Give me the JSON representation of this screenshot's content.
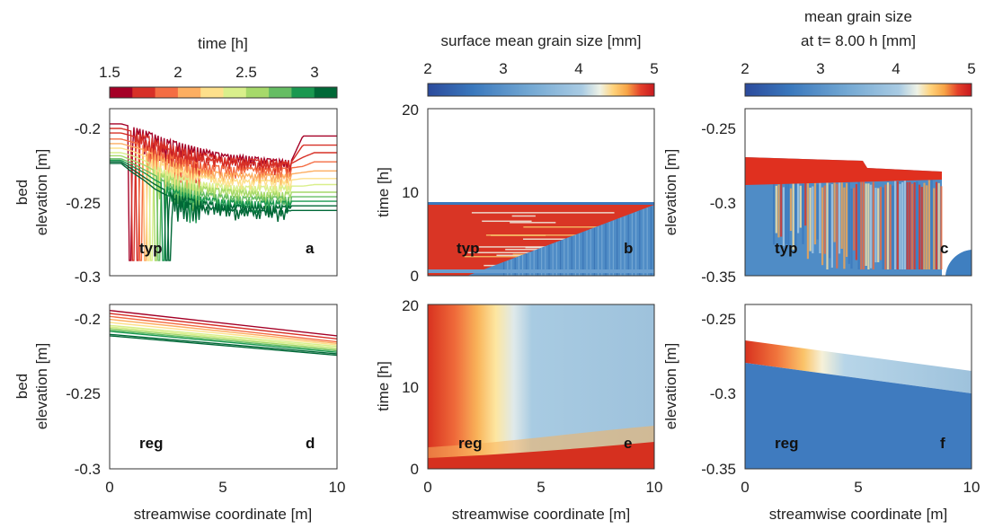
{
  "colors": {
    "rdylgn": [
      "#a50026",
      "#d73027",
      "#f46d43",
      "#fdae61",
      "#fee08b",
      "#d9ef8b",
      "#a6d96a",
      "#66bd63",
      "#1a9850",
      "#006837"
    ],
    "jet_map": [
      "#2b4a9c",
      "#3a78bd",
      "#73a8d3",
      "#a9cbe3",
      "#eef2e6",
      "#ffd27a",
      "#f7a446",
      "#e4402a",
      "#c7191f"
    ]
  },
  "figure": {
    "colorbars": [
      {
        "label_lines": [
          "time [h]"
        ],
        "ticks": [
          "1.5",
          "2",
          "2.5",
          "3"
        ],
        "range": [
          1.5,
          3.17
        ],
        "type": "discrete"
      },
      {
        "label_lines": [
          "surface mean grain size [mm]"
        ],
        "ticks": [
          "2",
          "3",
          "4",
          "5"
        ],
        "range": [
          2,
          5
        ],
        "type": "continuous"
      },
      {
        "label_lines": [
          "mean grain size",
          "at t= 8.00 h [mm]"
        ],
        "ticks": [
          "2",
          "3",
          "4",
          "5"
        ],
        "range": [
          2,
          5
        ],
        "type": "continuous"
      }
    ]
  },
  "chart_data": [
    {
      "type": "line",
      "panel_label": "a",
      "regime": "typ",
      "xlabel": "",
      "ylabel": [
        "bed",
        "elevation [m]"
      ],
      "xlim": [
        0,
        10
      ],
      "ylim": [
        -0.3,
        -0.19
      ],
      "xticks": [],
      "yticks": [
        "-0.2",
        "-0.25",
        "-0.3"
      ],
      "x": [
        0,
        0.5,
        1,
        1.5,
        2,
        2.5,
        3,
        3.5,
        4,
        5,
        6,
        7,
        8,
        8.5,
        9,
        10
      ],
      "series": [
        {
          "time": 1.6,
          "values": [
            -0.2,
            -0.2,
            -0.202,
            -0.204,
            -0.207,
            -0.21,
            -0.212,
            -0.214,
            -0.216,
            -0.22,
            -0.221,
            -0.223,
            -0.224,
            -0.208,
            -0.208,
            -0.208
          ]
        },
        {
          "time": 1.7,
          "values": [
            -0.203,
            -0.203,
            -0.205,
            -0.207,
            -0.21,
            -0.213,
            -0.215,
            -0.217,
            -0.219,
            -0.222,
            -0.223,
            -0.224,
            -0.225,
            -0.214,
            -0.214,
            -0.214
          ]
        },
        {
          "time": 1.8,
          "values": [
            -0.206,
            -0.206,
            -0.208,
            -0.21,
            -0.213,
            -0.216,
            -0.218,
            -0.22,
            -0.222,
            -0.224,
            -0.225,
            -0.226,
            -0.226,
            -0.222,
            -0.219,
            -0.219
          ]
        },
        {
          "time": 2.0,
          "values": [
            -0.21,
            -0.21,
            -0.212,
            -0.214,
            -0.217,
            -0.22,
            -0.222,
            -0.224,
            -0.226,
            -0.228,
            -0.229,
            -0.229,
            -0.229,
            -0.228,
            -0.225,
            -0.225
          ]
        },
        {
          "time": 2.15,
          "values": [
            -0.213,
            -0.213,
            -0.215,
            -0.217,
            -0.22,
            -0.223,
            -0.226,
            -0.228,
            -0.23,
            -0.232,
            -0.233,
            -0.233,
            -0.233,
            -0.232,
            -0.231,
            -0.231
          ]
        },
        {
          "time": 2.3,
          "values": [
            -0.216,
            -0.216,
            -0.218,
            -0.221,
            -0.224,
            -0.227,
            -0.23,
            -0.232,
            -0.234,
            -0.236,
            -0.237,
            -0.237,
            -0.237,
            -0.236,
            -0.236,
            -0.236
          ]
        },
        {
          "time": 2.45,
          "values": [
            -0.219,
            -0.219,
            -0.221,
            -0.224,
            -0.228,
            -0.231,
            -0.234,
            -0.236,
            -0.238,
            -0.24,
            -0.241,
            -0.241,
            -0.241,
            -0.241,
            -0.24,
            -0.24
          ]
        },
        {
          "time": 2.6,
          "values": [
            -0.221,
            -0.221,
            -0.224,
            -0.227,
            -0.231,
            -0.234,
            -0.237,
            -0.239,
            -0.241,
            -0.243,
            -0.244,
            -0.245,
            -0.245,
            -0.245,
            -0.245,
            -0.245
          ]
        },
        {
          "time": 2.75,
          "values": [
            -0.223,
            -0.223,
            -0.226,
            -0.23,
            -0.234,
            -0.238,
            -0.241,
            -0.243,
            -0.245,
            -0.247,
            -0.248,
            -0.248,
            -0.248,
            -0.248,
            -0.248,
            -0.248
          ]
        },
        {
          "time": 2.9,
          "values": [
            -0.224,
            -0.224,
            -0.228,
            -0.232,
            -0.237,
            -0.241,
            -0.244,
            -0.246,
            -0.248,
            -0.25,
            -0.251,
            -0.251,
            -0.251,
            -0.251,
            -0.251,
            -0.251
          ]
        },
        {
          "time": 3.05,
          "values": [
            -0.225,
            -0.225,
            -0.23,
            -0.235,
            -0.24,
            -0.244,
            -0.247,
            -0.249,
            -0.251,
            -0.253,
            -0.254,
            -0.254,
            -0.254,
            -0.254,
            -0.254,
            -0.254
          ]
        },
        {
          "time": 3.15,
          "values": [
            -0.226,
            -0.226,
            -0.232,
            -0.237,
            -0.243,
            -0.247,
            -0.25,
            -0.252,
            -0.254,
            -0.256,
            -0.257,
            -0.257,
            -0.257,
            -0.257,
            -0.257,
            -0.257
          ]
        }
      ]
    },
    {
      "type": "heatmap",
      "panel_label": "b",
      "regime": "typ",
      "xlabel": "",
      "ylabel": [
        "time [h]"
      ],
      "xlim": [
        0,
        10
      ],
      "ylim": [
        0,
        20
      ],
      "xticks": [],
      "yticks": [
        "20",
        "10",
        "0"
      ],
      "field": "surface mean grain size [mm]",
      "description_values": {
        "upstream_coarse_mm": 4.9,
        "downstream_fine_mm": 3.0,
        "simulated_until_h": 8.8
      }
    },
    {
      "type": "heatmap",
      "panel_label": "c",
      "regime": "typ",
      "xlabel": "",
      "ylabel": [
        "elevation [m]"
      ],
      "xlim": [
        0,
        10
      ],
      "ylim": [
        -0.35,
        -0.24
      ],
      "xticks": [],
      "yticks": [
        "-0.25",
        "-0.3",
        "-0.35"
      ],
      "field": "mean grain size at t= 8.00 h [mm]",
      "description_values": {
        "top_left_m": -0.272,
        "top_right_m": -0.283,
        "bottom_left_m": -0.285,
        "bottom_right_m": -0.348
      }
    },
    {
      "type": "line",
      "panel_label": "d",
      "regime": "reg",
      "xlabel": "streamwise coordinate [m]",
      "ylabel": [
        "bed",
        "elevation [m]"
      ],
      "xlim": [
        0,
        10
      ],
      "ylim": [
        -0.3,
        -0.19
      ],
      "xticks": [
        "0",
        "5",
        "10"
      ],
      "yticks": [
        "-0.2",
        "-0.25",
        "-0.3"
      ],
      "x": [
        0,
        10
      ],
      "series": [
        {
          "time": 1.6,
          "values": [
            -0.194,
            -0.211
          ]
        },
        {
          "time": 1.75,
          "values": [
            -0.196,
            -0.213
          ]
        },
        {
          "time": 1.9,
          "values": [
            -0.198,
            -0.215
          ]
        },
        {
          "time": 2.05,
          "values": [
            -0.2,
            -0.216
          ]
        },
        {
          "time": 2.2,
          "values": [
            -0.202,
            -0.217
          ]
        },
        {
          "time": 2.35,
          "values": [
            -0.204,
            -0.218
          ]
        },
        {
          "time": 2.5,
          "values": [
            -0.205,
            -0.219
          ]
        },
        {
          "time": 2.65,
          "values": [
            -0.206,
            -0.22
          ]
        },
        {
          "time": 2.8,
          "values": [
            -0.207,
            -0.221
          ]
        },
        {
          "time": 2.95,
          "values": [
            -0.208,
            -0.222
          ]
        },
        {
          "time": 3.05,
          "values": [
            -0.21,
            -0.223
          ]
        },
        {
          "time": 3.15,
          "values": [
            -0.211,
            -0.224
          ]
        }
      ]
    },
    {
      "type": "heatmap",
      "panel_label": "e",
      "regime": "reg",
      "xlabel": "streamwise coordinate [m]",
      "ylabel": [
        "time [h]"
      ],
      "xlim": [
        0,
        10
      ],
      "ylim": [
        0,
        20
      ],
      "xticks": [
        "0",
        "5",
        "10"
      ],
      "yticks": [
        "20",
        "10",
        "0"
      ],
      "field": "surface mean grain size [mm]",
      "description_values": {
        "upstream_coarse_mm": 4.9,
        "downstream_fine_mm": 3.2
      }
    },
    {
      "type": "heatmap",
      "panel_label": "f",
      "regime": "reg",
      "xlabel": "streamwise coordinate [m]",
      "ylabel": [
        "elevation [m]"
      ],
      "xlim": [
        0,
        10
      ],
      "ylim": [
        -0.35,
        -0.24
      ],
      "xticks": [
        "0",
        "5",
        "10"
      ],
      "yticks": [
        "-0.25",
        "-0.3",
        "-0.35"
      ],
      "field": "mean grain size at t= 8.00 h [mm]",
      "description_values": {
        "surface_left_m": -0.263,
        "surface_right_m": -0.284,
        "substrate_left_m": -0.278,
        "substrate_right_m": -0.298
      }
    }
  ]
}
